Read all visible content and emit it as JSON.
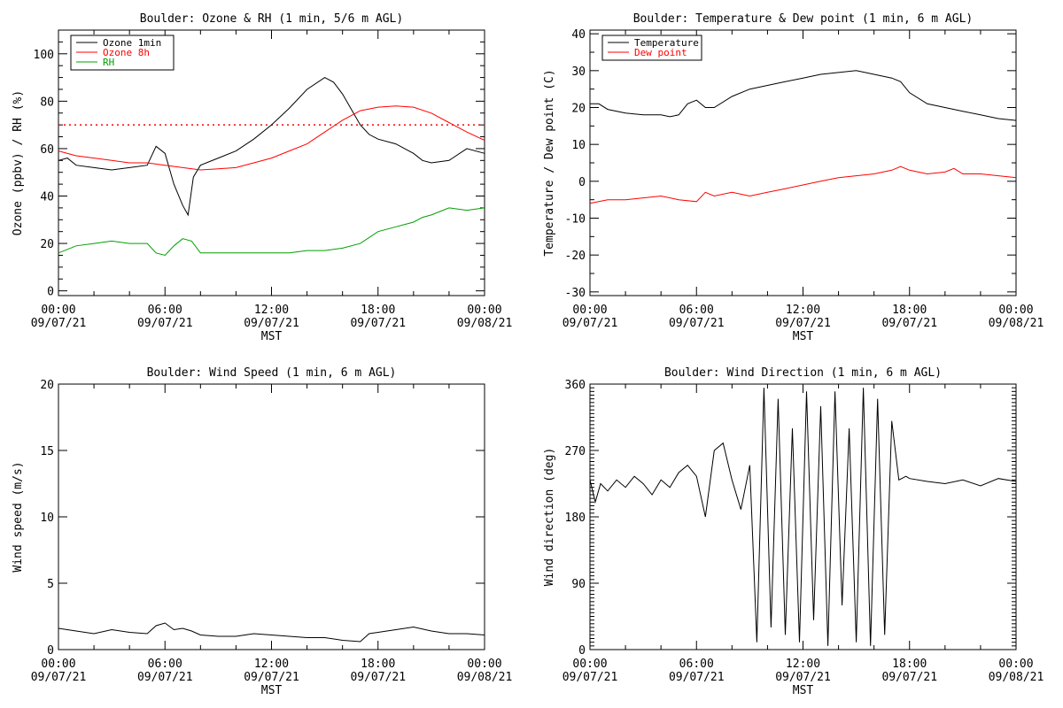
{
  "chart_data": [
    {
      "type": "line",
      "title": "Boulder: Ozone & RH (1 min, 5/6 m AGL)",
      "xlabel": "MST",
      "ylabel": "Ozone (ppbv) / RH (%)",
      "xlim": [
        0,
        24
      ],
      "ylim": [
        -2,
        110
      ],
      "yticks": [
        0,
        20,
        40,
        60,
        80,
        100
      ],
      "xticks": [
        {
          "x": 0,
          "time": "00:00",
          "date": "09/07/21"
        },
        {
          "x": 6,
          "time": "06:00",
          "date": "09/07/21"
        },
        {
          "x": 12,
          "time": "12:00",
          "date": "09/07/21"
        },
        {
          "x": 18,
          "time": "18:00",
          "date": "09/07/21"
        },
        {
          "x": 24,
          "time": "00:00",
          "date": "09/08/21"
        }
      ],
      "legend": "top-left",
      "reference_line": {
        "y": 70,
        "color": "#ff0000",
        "style": "dotted"
      },
      "series": [
        {
          "name": "Ozone 1min",
          "color": "#000000",
          "x": [
            0,
            0.5,
            1,
            2,
            3,
            4,
            5,
            5.5,
            6,
            6.5,
            7,
            7.3,
            7.6,
            8,
            9,
            10,
            11,
            12,
            13,
            14,
            15,
            15.5,
            16,
            17,
            17.5,
            18,
            19,
            20,
            20.5,
            21,
            22,
            23,
            24
          ],
          "y": [
            55,
            56,
            53,
            52,
            51,
            52,
            53,
            61,
            58,
            45,
            36,
            32,
            48,
            53,
            56,
            59,
            64,
            70,
            77,
            85,
            90,
            88,
            83,
            70,
            66,
            64,
            62,
            58,
            55,
            54,
            55,
            60,
            58
          ]
        },
        {
          "name": "Ozone 8h",
          "color": "#ff0000",
          "x": [
            0,
            1,
            2,
            3,
            4,
            5,
            6,
            7,
            8,
            9,
            10,
            11,
            12,
            13,
            14,
            15,
            16,
            17,
            18,
            19,
            20,
            21,
            22,
            23,
            24
          ],
          "y": [
            59,
            57,
            56,
            55,
            54,
            54,
            53,
            52,
            51,
            51.5,
            52,
            54,
            56,
            59,
            62,
            67,
            72,
            76,
            77.5,
            78,
            77.5,
            75,
            71,
            67,
            63.5
          ]
        },
        {
          "name": "RH",
          "color": "#00a000",
          "x": [
            0,
            1,
            2,
            3,
            4,
            5,
            5.5,
            6,
            6.5,
            7,
            7.5,
            8,
            9,
            10,
            11,
            12,
            13,
            14,
            15,
            16,
            17,
            18,
            19,
            20,
            20.5,
            21,
            22,
            23,
            24
          ],
          "y": [
            16,
            19,
            20,
            21,
            20,
            20,
            16,
            15,
            19,
            22,
            21,
            16,
            16,
            16,
            16,
            16,
            16,
            17,
            17,
            18,
            20,
            25,
            27,
            29,
            31,
            32,
            35,
            34,
            35
          ]
        }
      ]
    },
    {
      "type": "line",
      "title": "Boulder: Temperature & Dew point (1 min, 6 m AGL)",
      "xlabel": "MST",
      "ylabel": "Temperature / Dew point (C)",
      "xlim": [
        0,
        24
      ],
      "ylim": [
        -31,
        41
      ],
      "yticks": [
        -30,
        -20,
        -10,
        0,
        10,
        20,
        30,
        40
      ],
      "xticks": [
        {
          "x": 0,
          "time": "00:00",
          "date": "09/07/21"
        },
        {
          "x": 6,
          "time": "06:00",
          "date": "09/07/21"
        },
        {
          "x": 12,
          "time": "12:00",
          "date": "09/07/21"
        },
        {
          "x": 18,
          "time": "18:00",
          "date": "09/07/21"
        },
        {
          "x": 24,
          "time": "00:00",
          "date": "09/08/21"
        }
      ],
      "legend": "top-left",
      "series": [
        {
          "name": "Temperature",
          "color": "#000000",
          "x": [
            0,
            0.5,
            1,
            2,
            3,
            4,
            4.5,
            5,
            5.5,
            6,
            6.5,
            7,
            8,
            9,
            10,
            11,
            12,
            13,
            14,
            15,
            16,
            17,
            17.5,
            18,
            19,
            20,
            21,
            22,
            23,
            24
          ],
          "y": [
            21,
            21,
            19.5,
            18.5,
            18,
            18,
            17.5,
            18,
            21,
            22,
            20,
            20,
            23,
            25,
            26,
            27,
            28,
            29,
            29.5,
            30,
            29,
            28,
            27,
            24,
            21,
            20,
            19,
            18,
            17,
            16.5
          ]
        },
        {
          "name": "Dew point",
          "color": "#ff0000",
          "x": [
            0,
            1,
            2,
            3,
            4,
            5,
            6,
            6.5,
            7,
            8,
            9,
            10,
            11,
            12,
            13,
            14,
            15,
            16,
            17,
            17.5,
            18,
            19,
            20,
            20.5,
            21,
            22,
            23,
            24
          ],
          "y": [
            -6,
            -5,
            -5,
            -4.5,
            -4,
            -5,
            -5.5,
            -3,
            -4,
            -3,
            -4,
            -3,
            -2,
            -1,
            0,
            1,
            1.5,
            2,
            3,
            4,
            3,
            2,
            2.5,
            3.5,
            2,
            2,
            1.5,
            1
          ]
        }
      ]
    },
    {
      "type": "line",
      "title": "Boulder: Wind Speed (1 min, 6 m AGL)",
      "xlabel": "MST",
      "ylabel": "Wind speed (m/s)",
      "xlim": [
        0,
        24
      ],
      "ylim": [
        0,
        20
      ],
      "yticks": [
        0,
        5,
        10,
        15,
        20
      ],
      "xticks": [
        {
          "x": 0,
          "time": "00:00",
          "date": "09/07/21"
        },
        {
          "x": 6,
          "time": "06:00",
          "date": "09/07/21"
        },
        {
          "x": 12,
          "time": "12:00",
          "date": "09/07/21"
        },
        {
          "x": 18,
          "time": "18:00",
          "date": "09/07/21"
        },
        {
          "x": 24,
          "time": "00:00",
          "date": "09/08/21"
        }
      ],
      "series": [
        {
          "name": "",
          "color": "#000000",
          "x": [
            0,
            1,
            2,
            3,
            4,
            5,
            5.5,
            6,
            6.5,
            7,
            7.5,
            8,
            9,
            10,
            11,
            12,
            13,
            14,
            15,
            16,
            17,
            17.5,
            18,
            19,
            20,
            21,
            22,
            23,
            24
          ],
          "y": [
            1.6,
            1.4,
            1.2,
            1.5,
            1.3,
            1.2,
            1.8,
            2.0,
            1.5,
            1.6,
            1.4,
            1.1,
            1.0,
            1.0,
            1.2,
            1.1,
            1.0,
            0.9,
            0.9,
            0.7,
            0.6,
            1.2,
            1.3,
            1.5,
            1.7,
            1.4,
            1.2,
            1.2,
            1.1
          ]
        }
      ]
    },
    {
      "type": "line",
      "title": "Boulder: Wind Direction (1 min, 6 m AGL)",
      "xlabel": "MST",
      "ylabel": "Wind direction (deg)",
      "xlim": [
        0,
        24
      ],
      "ylim": [
        0,
        360
      ],
      "yticks": [
        0,
        90,
        180,
        270,
        360
      ],
      "xticks": [
        {
          "x": 0,
          "time": "00:00",
          "date": "09/07/21"
        },
        {
          "x": 6,
          "time": "06:00",
          "date": "09/07/21"
        },
        {
          "x": 12,
          "time": "12:00",
          "date": "09/07/21"
        },
        {
          "x": 18,
          "time": "18:00",
          "date": "09/07/21"
        },
        {
          "x": 24,
          "time": "00:00",
          "date": "09/08/21"
        }
      ],
      "series": [
        {
          "name": "",
          "color": "#000000",
          "x": [
            0,
            0.3,
            0.6,
            1,
            1.5,
            2,
            2.5,
            3,
            3.5,
            4,
            4.5,
            5,
            5.5,
            6,
            6.5,
            7,
            7.5,
            8,
            8.5,
            9,
            9.4,
            9.8,
            10.2,
            10.6,
            11,
            11.4,
            11.8,
            12.2,
            12.6,
            13,
            13.4,
            13.8,
            14.2,
            14.6,
            15,
            15.4,
            15.8,
            16.2,
            16.6,
            17,
            17.4,
            17.8,
            18,
            19,
            20,
            21,
            22,
            23,
            24
          ],
          "y": [
            230,
            200,
            225,
            215,
            230,
            220,
            235,
            225,
            210,
            230,
            220,
            240,
            250,
            235,
            180,
            270,
            280,
            230,
            190,
            250,
            10,
            355,
            30,
            340,
            20,
            300,
            10,
            350,
            40,
            330,
            5,
            350,
            60,
            300,
            10,
            355,
            5,
            340,
            20,
            310,
            230,
            235,
            232,
            228,
            225,
            230,
            222,
            232,
            228
          ]
        }
      ]
    }
  ]
}
